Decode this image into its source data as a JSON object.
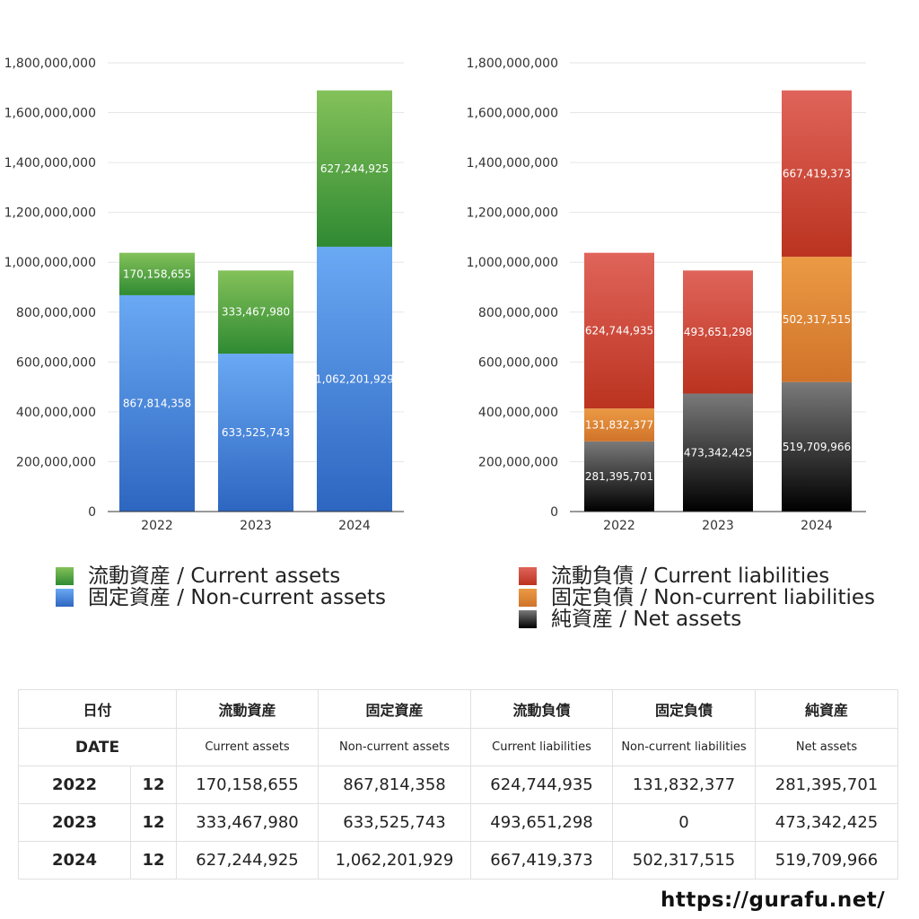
{
  "chart_data": [
    {
      "type": "bar",
      "stacked": true,
      "categories": [
        "2022",
        "2023",
        "2024"
      ],
      "ylim": [
        0,
        1800000000
      ],
      "yticks": [
        0,
        200000000,
        400000000,
        600000000,
        800000000,
        1000000000,
        1200000000,
        1400000000,
        1600000000,
        1800000000
      ],
      "grid": true,
      "legend_position": "bottom",
      "series": [
        {
          "name": "固定資産 / Non-current assets",
          "values": [
            867814358,
            633525743,
            1062201929
          ],
          "color_top": "#6aa9f4",
          "color_bottom": "#2d66c0"
        },
        {
          "name": "流動資産 / Current assets",
          "values": [
            170158655,
            333467980,
            627244925
          ],
          "color_top": "#84c15a",
          "color_bottom": "#2f8a32"
        }
      ]
    },
    {
      "type": "bar",
      "stacked": true,
      "categories": [
        "2022",
        "2023",
        "2024"
      ],
      "ylim": [
        0,
        1800000000
      ],
      "yticks": [
        0,
        200000000,
        400000000,
        600000000,
        800000000,
        1000000000,
        1200000000,
        1400000000,
        1600000000,
        1800000000
      ],
      "grid": true,
      "legend_position": "bottom",
      "series": [
        {
          "name": "純資産 / Net assets",
          "values": [
            281395701,
            473342425,
            519709966
          ],
          "color_top": "#7a7a7a",
          "color_bottom": "#000000"
        },
        {
          "name": "固定負債 / Non-current liabilities",
          "values": [
            131832377,
            0,
            502317515
          ],
          "color_top": "#eb9a44",
          "color_bottom": "#d0732a"
        },
        {
          "name": "流動負債 / Current liabilities",
          "values": [
            624744935,
            493651298,
            667419373
          ],
          "color_top": "#e0645a",
          "color_bottom": "#bb3320"
        }
      ]
    }
  ],
  "legend_left": [
    {
      "label": "流動資産 / Current assets",
      "color": "#4fa33e"
    },
    {
      "label": "固定資産 / Non-current assets",
      "color": "#3f7fe0"
    }
  ],
  "legend_right": [
    {
      "label": "流動負債 / Current liabilities",
      "color": "#cf4a3a"
    },
    {
      "label": "固定負債 / Non-current liabilities",
      "color": "#e38a3a"
    },
    {
      "label": "純資産 / Net assets",
      "color": "#333333"
    }
  ],
  "table": {
    "header_jp": {
      "date": "日付",
      "cols": [
        "流動資産",
        "固定資産",
        "流動負債",
        "固定負債",
        "純資産"
      ]
    },
    "header_en": {
      "date": "DATE",
      "cols": [
        "Current assets",
        "Non-current assets",
        "Current liabilities",
        "Non-current liabilities",
        "Net assets"
      ]
    },
    "rows": [
      {
        "year": "2022",
        "month": "12",
        "values": [
          "170,158,655",
          "867,814,358",
          "624,744,935",
          "131,832,377",
          "281,395,701"
        ]
      },
      {
        "year": "2023",
        "month": "12",
        "values": [
          "333,467,980",
          "633,525,743",
          "493,651,298",
          "0",
          "473,342,425"
        ]
      },
      {
        "year": "2024",
        "month": "12",
        "values": [
          "627,244,925",
          "1,062,201,929",
          "667,419,373",
          "502,317,515",
          "519,709,966"
        ]
      }
    ]
  },
  "footer": {
    "url": "https://gurafu.net/"
  }
}
